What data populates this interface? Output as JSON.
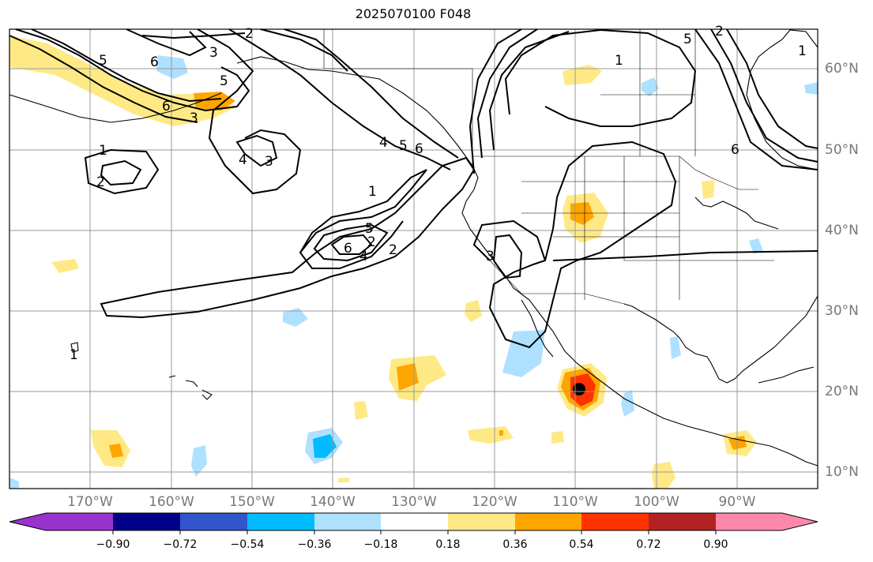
{
  "title": "2025070100 F048",
  "longitude_labels": [
    "170°W",
    "160°W",
    "150°W",
    "140°W",
    "130°W",
    "120°W",
    "110°W",
    "100°W",
    "90°W"
  ],
  "latitude_labels": [
    "60°N",
    "50°N",
    "40°N",
    "30°N",
    "20°N",
    "10°N"
  ],
  "contour_labels": [
    "2",
    "5",
    "6",
    "3",
    "1",
    "2",
    "5",
    "6",
    "3",
    "4",
    "3",
    "1",
    "2",
    "2",
    "6",
    "5",
    "4",
    "6",
    "4",
    "5",
    "1",
    "2",
    "5",
    "3",
    "1",
    "6",
    "1"
  ],
  "colorbar": {
    "tick_labels": [
      "−0.90",
      "−0.72",
      "−0.54",
      "−0.36",
      "−0.18",
      "0.18",
      "0.36",
      "0.54",
      "0.72",
      "0.90"
    ],
    "colors": [
      "#9933cc",
      "#000088",
      "#3355cc",
      "#00bbff",
      "#aee0ff",
      "#ffffff",
      "#ffe985",
      "#ffa500",
      "#ff3300",
      "#b22222",
      "#ff88aa"
    ],
    "extend": "both"
  },
  "map": {
    "extent": {
      "lon_min": -180,
      "lon_max": -80,
      "lat_min": 8,
      "lat_max": 65
    },
    "grid": true,
    "storm_center": {
      "lon": -109.5,
      "lat": 20
    }
  }
}
